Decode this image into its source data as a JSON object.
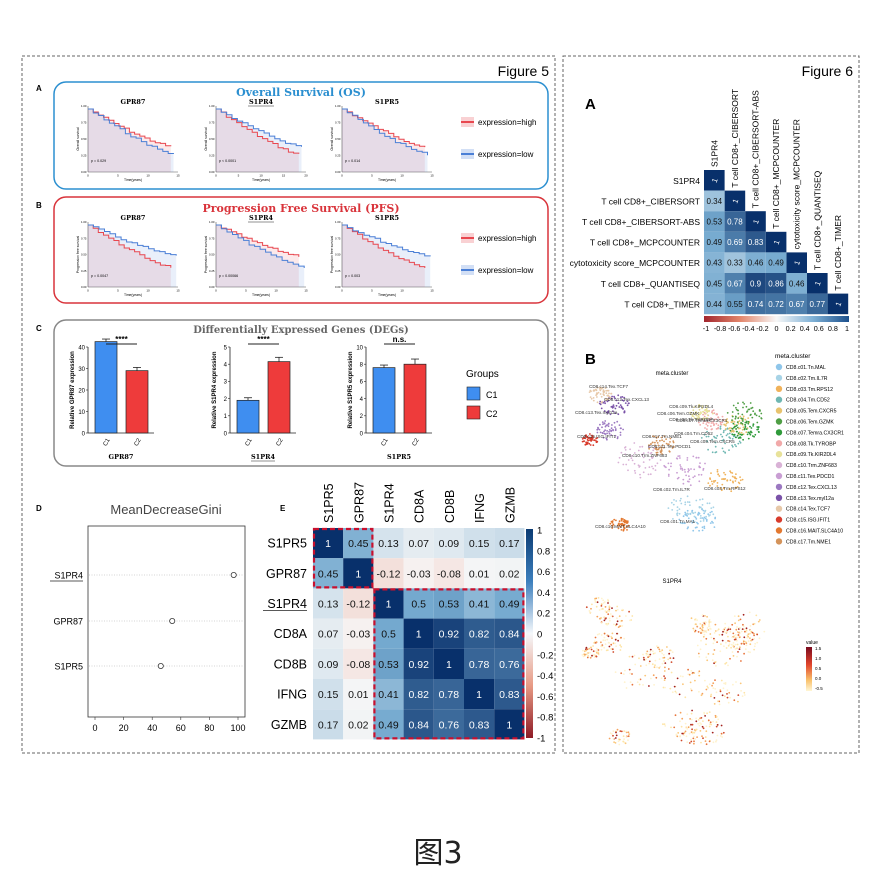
{
  "caption": "图3",
  "colors": {
    "high": "#e8474f",
    "low": "#4a7fd6",
    "c1": "#3f8ef0",
    "c2": "#ee3b3b",
    "os_border": "#2b8fd0",
    "pfs_border": "#d9343b",
    "dashed_red": "#c8102e"
  },
  "figure5": {
    "title": "Figure 5",
    "panel_a": {
      "letter": "A",
      "title": "Overall Survival (OS)",
      "legend": [
        "expression=high",
        "expression=low"
      ],
      "plots": [
        {
          "gene": "GPR87",
          "underlined": false,
          "p": "p = 0.029",
          "ylabel": "Overall survival",
          "xlabel": "Time(years)",
          "xticks": [
            "0",
            "5",
            "10",
            "15"
          ],
          "yticks": [
            "1.00",
            "0.75",
            "0.50",
            "0.25",
            "0.00"
          ]
        },
        {
          "gene": "S1PR4",
          "underlined": true,
          "p": "p < 0.0001",
          "ylabel": "Overall survival",
          "xlabel": "Time(years)",
          "xticks": [
            "0",
            "5",
            "10",
            "15",
            "20"
          ],
          "yticks": [
            "1.00",
            "0.75",
            "0.50",
            "0.25",
            "0.00"
          ]
        },
        {
          "gene": "S1PR5",
          "underlined": false,
          "p": "p = 0.014",
          "ylabel": "Overall survival",
          "xlabel": "Time(years)",
          "xticks": [
            "0",
            "5",
            "10",
            "15"
          ],
          "yticks": [
            "1.00",
            "0.75",
            "0.50",
            "0.25",
            "0.00"
          ]
        }
      ]
    },
    "panel_b": {
      "letter": "B",
      "title": "Progression Free Survival (PFS)",
      "legend": [
        "expression=high",
        "expression=low"
      ],
      "plots": [
        {
          "gene": "GPR87",
          "underlined": false,
          "p": "p = 0.0047",
          "ylabel": "Progression free survival",
          "xlabel": "Time(years)",
          "xticks": [
            "0",
            "5",
            "10",
            "15"
          ],
          "yticks": [
            "1.00",
            "0.75",
            "0.50",
            "0.25",
            "0.00"
          ]
        },
        {
          "gene": "S1PR4",
          "underlined": true,
          "p": "p = 0.00066",
          "ylabel": "Progression free survival",
          "xlabel": "Time(years)",
          "xticks": [
            "0",
            "5",
            "10",
            "15"
          ],
          "yticks": [
            "1.00",
            "0.75",
            "0.50",
            "0.25",
            "0.00"
          ]
        },
        {
          "gene": "S1PR5",
          "underlined": false,
          "p": "p = 0.003",
          "ylabel": "Progression free survival",
          "xlabel": "Time(years)",
          "xticks": [
            "0",
            "5",
            "10",
            "15"
          ],
          "yticks": [
            "1.00",
            "0.75",
            "0.50",
            "0.25",
            "0.00"
          ]
        }
      ]
    },
    "panel_c": {
      "letter": "C",
      "title": "Differentially Expressed Genes (DEGs)",
      "legend_title": "Groups",
      "groups": [
        "C1",
        "C2"
      ],
      "chart_data": [
        {
          "type": "bar",
          "gene": "GPR87",
          "underlined": false,
          "categories": [
            "C1",
            "C2"
          ],
          "values": [
            42.5,
            29.0
          ],
          "errors": [
            1.2,
            1.5
          ],
          "ylim": [
            0,
            40
          ],
          "yticks": [
            "0",
            "10",
            "20",
            "30",
            "40"
          ],
          "ylabel": "Relative GPR87 expression",
          "sig": "****"
        },
        {
          "type": "bar",
          "gene": "S1PR4",
          "underlined": true,
          "categories": [
            "C1",
            "C2"
          ],
          "values": [
            1.9,
            4.15
          ],
          "errors": [
            0.15,
            0.25
          ],
          "ylim": [
            0,
            5
          ],
          "yticks": [
            "0",
            "1",
            "2",
            "3",
            "4",
            "5"
          ],
          "ylabel": "Relative S1PR4 expression",
          "sig": "****"
        },
        {
          "type": "bar",
          "gene": "S1PR5",
          "underlined": false,
          "categories": [
            "C1",
            "C2"
          ],
          "values": [
            7.6,
            8.0
          ],
          "errors": [
            0.3,
            0.6
          ],
          "ylim": [
            0,
            10
          ],
          "yticks": [
            "0",
            "2",
            "4",
            "6",
            "8",
            "10"
          ],
          "ylabel": "Relative S1PR5 expression",
          "sig": "n.s."
        }
      ]
    },
    "panel_d": {
      "letter": "D",
      "chart_data": {
        "type": "scatter",
        "title": "MeanDecreaseGini",
        "categories": [
          "S1PR4",
          "GPR87",
          "S1PR5"
        ],
        "underlined": [
          "S1PR4"
        ],
        "values": [
          97,
          54,
          46
        ],
        "xlim": [
          0,
          100
        ],
        "xticks": [
          "0",
          "20",
          "40",
          "60",
          "80",
          "100"
        ]
      }
    },
    "panel_e": {
      "letter": "E",
      "chart_data": {
        "type": "heatmap",
        "labels": [
          "S1PR5",
          "GPR87",
          "S1PR4",
          "CD8A",
          "CD8B",
          "IFNG",
          "GZMB"
        ],
        "underlined": [
          "S1PR4"
        ],
        "matrix": [
          [
            1,
            0.45,
            0.13,
            0.07,
            0.09,
            0.15,
            0.17
          ],
          [
            0.45,
            1,
            -0.12,
            -0.03,
            -0.08,
            0.01,
            0.02
          ],
          [
            0.13,
            -0.12,
            1,
            0.5,
            0.53,
            0.41,
            0.49
          ],
          [
            0.07,
            -0.03,
            0.5,
            1,
            0.92,
            0.82,
            0.84
          ],
          [
            0.09,
            -0.08,
            0.53,
            0.92,
            1,
            0.78,
            0.76
          ],
          [
            0.15,
            0.01,
            0.41,
            0.82,
            0.78,
            1,
            0.83
          ],
          [
            0.17,
            0.02,
            0.49,
            0.84,
            0.76,
            0.83,
            1
          ]
        ],
        "colorbar_ticks": [
          "1",
          "0.8",
          "0.6",
          "0.4",
          "0.2",
          "0",
          "-0.2",
          "-0.4",
          "-0.6",
          "-0.8",
          "-1"
        ]
      }
    }
  },
  "figure6": {
    "title": "Figure 6",
    "panel_a": {
      "letter": "A",
      "chart_data": {
        "type": "heatmap",
        "labels": [
          "S1PR4",
          "T cell CD8+_CIBERSORT",
          "T cell CD8+_CIBERSORT-ABS",
          "T cell CD8+_MCPCOUNTER",
          "cytotoxicity score_MCPCOUNTER",
          "T cell CD8+_QUANTISEQ",
          "T cell CD8+_TIMER"
        ],
        "lower_triangle": [
          [],
          [
            0.34
          ],
          [
            0.53,
            0.78
          ],
          [
            0.49,
            0.69,
            0.83
          ],
          [
            0.43,
            0.33,
            0.46,
            0.49
          ],
          [
            0.45,
            0.67,
            0.9,
            0.86,
            0.46
          ],
          [
            0.44,
            0.55,
            0.74,
            0.72,
            0.67,
            0.77
          ]
        ],
        "colorbar_ticks": [
          "-1",
          "-0.8",
          "-0.6",
          "-0.4",
          "-0.2",
          "0",
          "0.2",
          "0.4",
          "0.6",
          "0.8",
          "1"
        ]
      }
    },
    "panel_b": {
      "letter": "B",
      "umap_title": "meta.cluster",
      "legend_title": "meta.cluster",
      "clusters": [
        {
          "name": "CD8.c01.Tn.MAL",
          "color": "#8fc6ea"
        },
        {
          "name": "CD8.c02.Tm.IL7R",
          "color": "#a7d3e6"
        },
        {
          "name": "CD8.c03.Tm.RPS12",
          "color": "#f0b25a"
        },
        {
          "name": "CD8.c04.Tm.CD52",
          "color": "#6fb7b2"
        },
        {
          "name": "CD8.c05.Tem.CXCR5",
          "color": "#e8c36e"
        },
        {
          "name": "CD8.c06.Tem.GZMK",
          "color": "#4f9e45"
        },
        {
          "name": "CD8.c07.Temra.CX3CR1",
          "color": "#2f9a3a"
        },
        {
          "name": "CD8.c08.Tk.TYROBP",
          "color": "#f1a9a9"
        },
        {
          "name": "CD8.c09.Tk.KIR2DL4",
          "color": "#e8e29a"
        },
        {
          "name": "CD8.c10.Trm.ZNF683",
          "color": "#d9b2d6"
        },
        {
          "name": "CD8.c11.Tex.PDCD1",
          "color": "#c99ed3"
        },
        {
          "name": "CD8.c12.Tex.CXCL13",
          "color": "#9b78c1"
        },
        {
          "name": "CD8.c13.Tex.myl12a",
          "color": "#7a52a8"
        },
        {
          "name": "CD8.c14.Tex.TCF7",
          "color": "#e7c8a8"
        },
        {
          "name": "CD8.c15.ISG.IFIT1",
          "color": "#d83b2c"
        },
        {
          "name": "CD8.c16.MAIT.SLC4A10",
          "color": "#e3782f"
        },
        {
          "name": "CD8.c17.Tm.NME1",
          "color": "#d4935a"
        }
      ],
      "umap_labels": [
        "CD8.c14.Tex.TCF7",
        "CD8.c12.Tex.CXCL13",
        "CD8.c13.Tex.myl12a",
        "CD8.c09.Tk.KIR2DL4",
        "CD8.c08.Tk.TYROBP",
        "CD8.c06.Tem.GZMK",
        "CD8.c07.Temra.CX3CR1",
        "CD8.c15.ISG.IFIT1",
        "CD8.c17.Tm.NME1",
        "CD8.c11.Tex.PDCD1",
        "CD8.c10.Trm.ZNF683",
        "CD8.c04.Tm.CD52",
        "CD8.c05.Tem.CXCR5",
        "CD8.c02.Tm.IL7R",
        "CD8.c03.Tm.RPS12",
        "CD8.c01.Tn.MAL",
        "CD8.c16.MAIT.SLC4A10"
      ],
      "feature_title": "S1PR4",
      "value_legend_title": "value",
      "value_ticks": [
        "1.5",
        "1.0",
        "0.5",
        "0.0",
        "-0.5"
      ]
    }
  }
}
